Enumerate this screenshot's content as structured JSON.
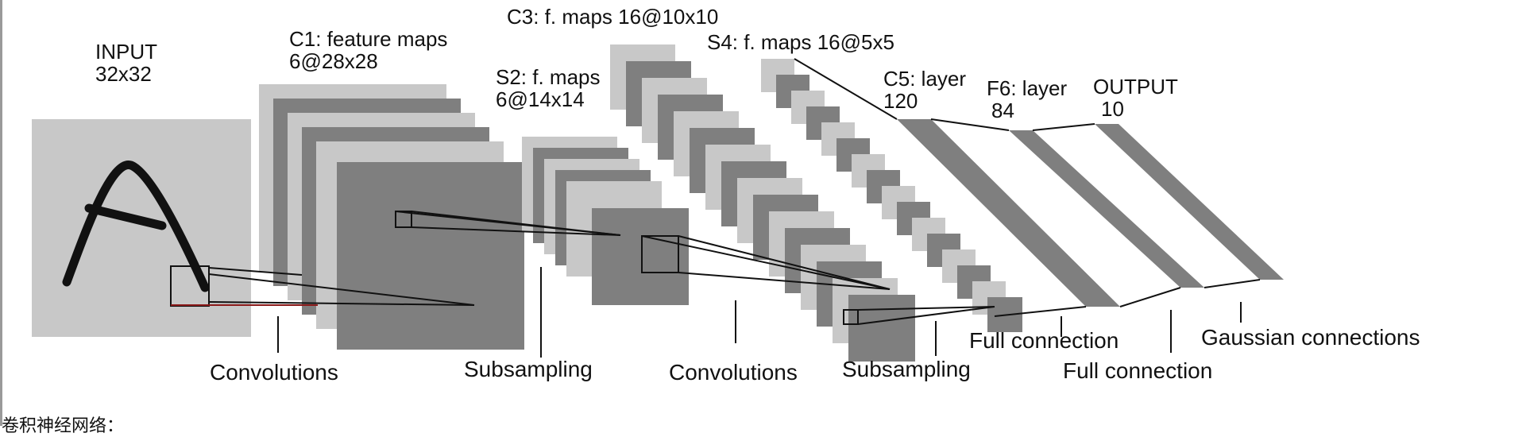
{
  "layers": {
    "input": {
      "name": "INPUT",
      "size": "32x32"
    },
    "c1": {
      "name": "C1: feature maps",
      "size": "6@28x28"
    },
    "s2": {
      "name": "S2: f. maps",
      "size": "6@14x14"
    },
    "c3": {
      "name": "C3: f. maps 16@10x10"
    },
    "s4": {
      "name": "S4: f. maps 16@5x5"
    },
    "c5": {
      "name": "C5: layer",
      "size": "120"
    },
    "f6": {
      "name": "F6: layer",
      "size": "84"
    },
    "output": {
      "name": "OUTPUT",
      "size": "10"
    }
  },
  "operations": {
    "conv1": "Convolutions",
    "sub1": "Subsampling",
    "conv2": "Convolutions",
    "sub2": "Subsampling",
    "full1": "Full connection",
    "full2": "Full connection",
    "gauss": "Gaussian connections"
  },
  "caption": "卷积神经网络：",
  "colors": {
    "light": "#c8c8c8",
    "dark": "#7f7f7f",
    "line": "#111111",
    "accent": "#8b1a1a"
  }
}
